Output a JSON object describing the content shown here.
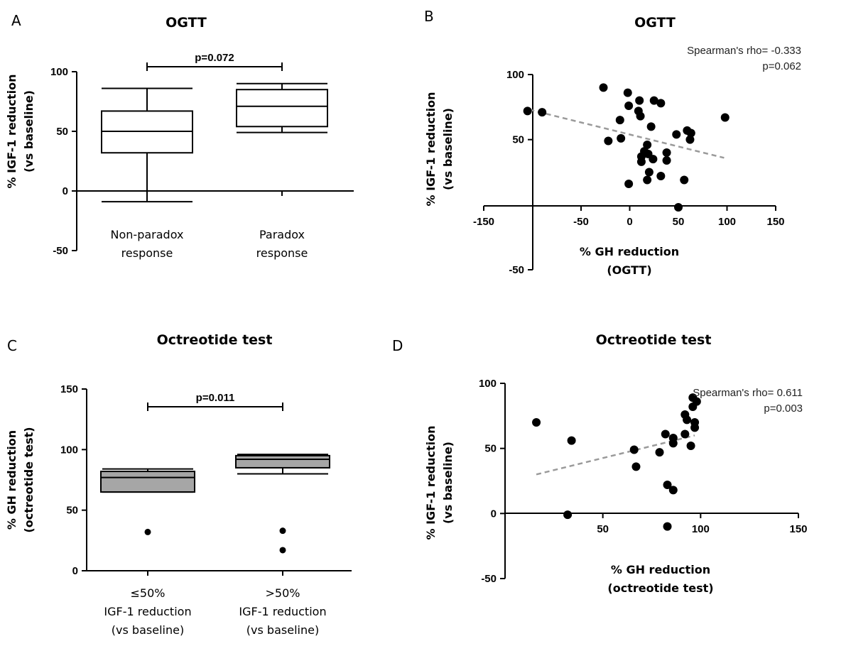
{
  "chart_data": [
    {
      "panel": "A",
      "type": "box",
      "title": "OGTT",
      "ylabel": [
        "% IGF-1 reduction",
        "(vs baseline)"
      ],
      "ylim": [
        -50,
        100
      ],
      "yticks": [
        -50,
        0,
        50,
        100
      ],
      "groups": [
        {
          "label": [
            "Non-paradox",
            "response"
          ],
          "min": -9,
          "q1": 32,
          "median": 50,
          "q3": 67,
          "max": 86,
          "fill": "#ffffff"
        },
        {
          "label": [
            "Paradox",
            "response"
          ],
          "min": 49,
          "q1": 54,
          "median": 71,
          "q3": 85,
          "max": 90,
          "fill": "#ffffff"
        }
      ],
      "comparison": {
        "text": "p=0.072",
        "y": 104
      }
    },
    {
      "panel": "B",
      "type": "scatter",
      "title": "OGTT",
      "ylabel": [
        "% IGF-1 reduction",
        "(vs baseline)"
      ],
      "xlabel": [
        "% GH reduction",
        "(OGTT)"
      ],
      "xlim": [
        -150,
        150
      ],
      "ylim": [
        -50,
        100
      ],
      "xticks": [
        -150,
        -50,
        0,
        50,
        100,
        150
      ],
      "yticks": [
        -50,
        50,
        100
      ],
      "stats": [
        "Spearman's rho= -0.333",
        "p=0.062"
      ],
      "trend": {
        "x1": -103,
        "y1": 73,
        "x2": 97,
        "y2": 36
      },
      "points": [
        [
          -105,
          72
        ],
        [
          -90,
          71
        ],
        [
          -27,
          90
        ],
        [
          -22,
          49
        ],
        [
          -10,
          65
        ],
        [
          -9,
          51
        ],
        [
          -2,
          86
        ],
        [
          -1,
          76
        ],
        [
          -1,
          16
        ],
        [
          10,
          80
        ],
        [
          9,
          72
        ],
        [
          11,
          68
        ],
        [
          12,
          37
        ],
        [
          12,
          33
        ],
        [
          15,
          41
        ],
        [
          18,
          19
        ],
        [
          18,
          46
        ],
        [
          19,
          39
        ],
        [
          20,
          25
        ],
        [
          22,
          60
        ],
        [
          24,
          35
        ],
        [
          25,
          80
        ],
        [
          32,
          78
        ],
        [
          32,
          22
        ],
        [
          38,
          40
        ],
        [
          38,
          34
        ],
        [
          48,
          54
        ],
        [
          56,
          19
        ],
        [
          59,
          57
        ],
        [
          62,
          50
        ],
        [
          63,
          55
        ],
        [
          98,
          67
        ],
        [
          50,
          -2
        ]
      ]
    },
    {
      "panel": "C",
      "type": "box",
      "title": "Octreotide test",
      "ylabel": [
        "% GH reduction",
        "(octreotide test)"
      ],
      "ylim": [
        0,
        150
      ],
      "yticks": [
        0,
        50,
        100,
        150
      ],
      "groups": [
        {
          "label": [
            "≤50%",
            "IGF-1 reduction",
            "(vs baseline)"
          ],
          "min": 65,
          "q1": 65,
          "median": 77,
          "q3": 82,
          "max": 84,
          "fill": "#a6a6a6",
          "outliers": [
            32
          ]
        },
        {
          "label": [
            ">50%",
            "IGF-1 reduction",
            "(vs baseline)"
          ],
          "min": 80,
          "q1": 85,
          "median": 92,
          "q3": 95,
          "max": 96,
          "fill": "#a6a6a6",
          "outliers": [
            33,
            17
          ]
        }
      ],
      "comparison": {
        "text": "p=0.011",
        "y": 121
      }
    },
    {
      "panel": "D",
      "type": "scatter",
      "title": "Octreotide test",
      "ylabel": [
        "% IGF-1 reduction",
        "(vs baseline)"
      ],
      "xlabel": [
        "% GH reduction",
        "(octreotide test)"
      ],
      "xlim": [
        0,
        150
      ],
      "ylim": [
        -50,
        100
      ],
      "xticks": [
        50,
        100,
        150
      ],
      "yticks": [
        -50,
        0,
        50,
        100
      ],
      "stats": [
        "Spearman's rho= 0.611",
        "p=0.003"
      ],
      "trend": {
        "x1": 16,
        "y1": 30,
        "x2": 97,
        "y2": 60
      },
      "points": [
        [
          16,
          70
        ],
        [
          32,
          -1
        ],
        [
          34,
          56
        ],
        [
          66,
          49
        ],
        [
          67,
          36
        ],
        [
          79,
          47
        ],
        [
          82,
          61
        ],
        [
          83,
          22
        ],
        [
          83,
          -10
        ],
        [
          86,
          18
        ],
        [
          86,
          58
        ],
        [
          86,
          54
        ],
        [
          92,
          76
        ],
        [
          92,
          61
        ],
        [
          93,
          72
        ],
        [
          95,
          52
        ],
        [
          96,
          82
        ],
        [
          96,
          89
        ],
        [
          97,
          70
        ],
        [
          97,
          66
        ],
        [
          98,
          86
        ]
      ]
    }
  ]
}
